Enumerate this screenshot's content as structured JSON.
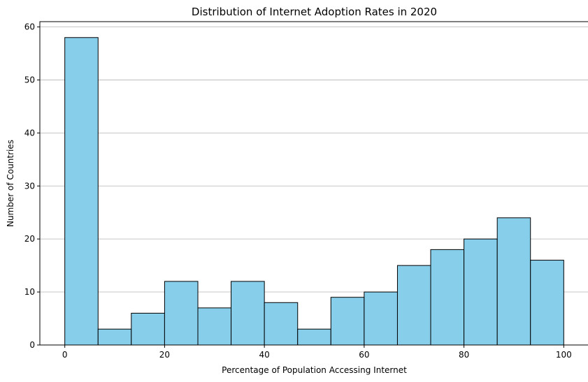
{
  "chart_data": {
    "type": "bar",
    "title": "Distribution of Internet Adoption Rates in 2020",
    "xlabel": "Percentage of Population Accessing Internet",
    "ylabel": "Number of Countries",
    "bin_edges": [
      0,
      6.67,
      13.33,
      20,
      26.67,
      33.33,
      40,
      46.67,
      53.33,
      60,
      66.67,
      73.33,
      80,
      86.67,
      93.33,
      100
    ],
    "values": [
      58,
      3,
      6,
      12,
      7,
      12,
      8,
      3,
      9,
      10,
      15,
      18,
      20,
      24,
      16
    ],
    "xlim": [
      -5,
      105
    ],
    "ylim": [
      0,
      61
    ],
    "xticks": [
      0,
      20,
      40,
      60,
      80,
      100
    ],
    "yticks": [
      0,
      10,
      20,
      30,
      40,
      50,
      60
    ],
    "grid": "y-axis only",
    "bar_color": "#87ceeb",
    "edge_color": "#000000",
    "grid_color": "#bfbfbf"
  }
}
